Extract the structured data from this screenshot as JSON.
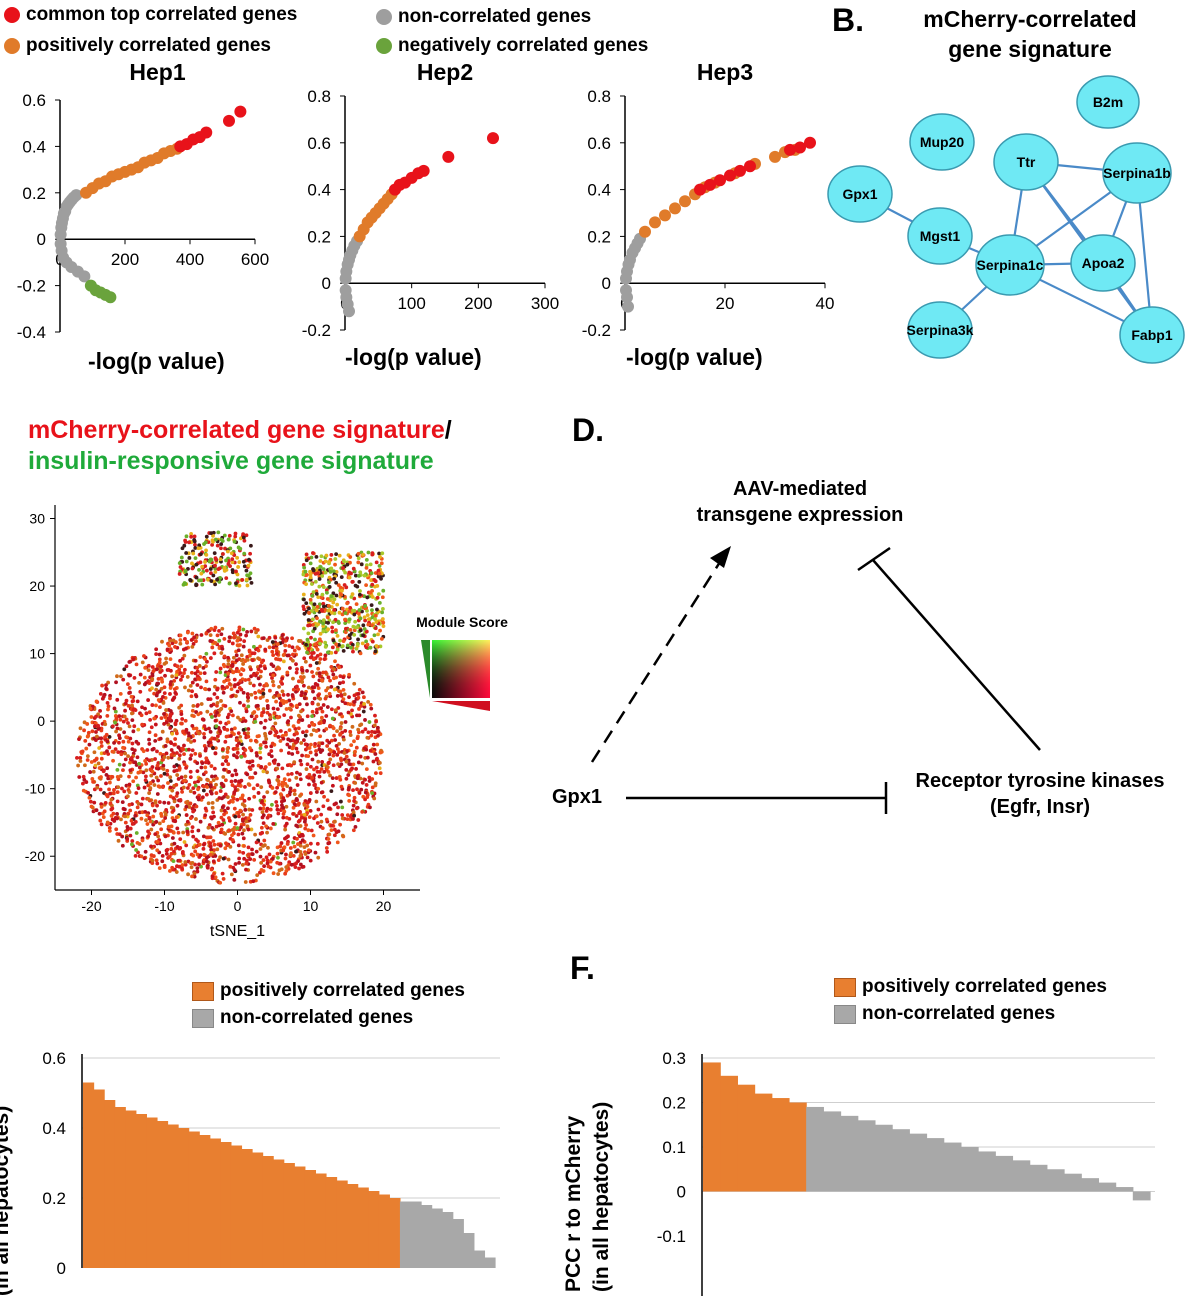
{
  "panelA": {
    "legend": [
      {
        "label": "common top correlated genes",
        "color": "#e8121a"
      },
      {
        "label": "non-correlated genes",
        "color": "#9e9e9e"
      },
      {
        "label": "positively correlated genes",
        "color": "#e07b2a"
      },
      {
        "label": "negatively correlated genes",
        "color": "#6aa33c"
      }
    ],
    "xlabel": "-log(p value)"
  },
  "panelB": {
    "letter": "B.",
    "title_line1": "mCherry-correlated",
    "title_line2": "gene signature",
    "nodes": [
      "B2m",
      "Mup20",
      "Ttr",
      "Serpina1b",
      "Gpx1",
      "Mgst1",
      "Serpina1c",
      "Apoa2",
      "Serpina3k",
      "Fabp1"
    ],
    "edges": [
      [
        "Gpx1",
        "Mgst1"
      ],
      [
        "Ttr",
        "Serpina1b"
      ],
      [
        "Ttr",
        "Serpina1c"
      ],
      [
        "Ttr",
        "Apoa2"
      ],
      [
        "Ttr",
        "Fabp1"
      ],
      [
        "Serpina1b",
        "Serpina1c"
      ],
      [
        "Serpina1b",
        "Apoa2"
      ],
      [
        "Serpina1b",
        "Fabp1"
      ],
      [
        "Serpina1c",
        "Apoa2"
      ],
      [
        "Serpina1c",
        "Fabp1"
      ],
      [
        "Serpina1c",
        "Serpina3k"
      ],
      [
        "Serpina1c",
        "Mgst1"
      ],
      [
        "Apoa2",
        "Fabp1"
      ]
    ],
    "node_color": "#6fe9f4"
  },
  "panelC": {
    "title_red": "mCherry-correlated gene signature",
    "title_sep": "/",
    "title_green": "insulin-responsive gene signature",
    "xlabel": "tSNE_1",
    "legend_title": "Module Score"
  },
  "panelD": {
    "letter": "D.",
    "top_line1": "AAV-mediated",
    "top_line2": "transgene expression",
    "left": "Gpx1",
    "right_line1": "Receptor tyrosine kinases",
    "right_line2": "(Egfr, Insr)"
  },
  "panelE": {
    "legend": [
      {
        "label": "positively correlated genes",
        "color": "#e87f30"
      },
      {
        "label": "non-correlated genes",
        "color": "#a8a8a8"
      }
    ],
    "ylabel_visible": "(in all hepatocytes)"
  },
  "panelF": {
    "letter": "F.",
    "legend": [
      {
        "label": "positively correlated genes",
        "color": "#e87f30"
      },
      {
        "label": "non-correlated genes",
        "color": "#a8a8a8"
      }
    ],
    "ylabel_line1": "PCC r to mCherry",
    "ylabel_line2": "(in all hepatocytes)"
  },
  "chart_data": [
    {
      "type": "scatter",
      "title": "Hep1",
      "xlabel": "-log(p value)",
      "xlim": [
        0,
        600
      ],
      "ylim": [
        -0.4,
        0.6
      ],
      "xticks": [
        0,
        200,
        400,
        600
      ],
      "yticks": [
        -0.4,
        -0.2,
        0,
        0.2,
        0.4,
        0.6
      ],
      "series": [
        {
          "name": "non-correlated genes",
          "color": "#9e9e9e",
          "points": [
            [
              2,
              0.02
            ],
            [
              4,
              0.05
            ],
            [
              6,
              0.07
            ],
            [
              9,
              0.09
            ],
            [
              12,
              0.11
            ],
            [
              16,
              0.12
            ],
            [
              20,
              0.14
            ],
            [
              25,
              0.15
            ],
            [
              30,
              0.16
            ],
            [
              36,
              0.17
            ],
            [
              42,
              0.18
            ],
            [
              50,
              0.19
            ],
            [
              2,
              -0.02
            ],
            [
              5,
              -0.05
            ],
            [
              10,
              -0.08
            ],
            [
              20,
              -0.1
            ],
            [
              35,
              -0.12
            ],
            [
              55,
              -0.14
            ],
            [
              75,
              -0.16
            ]
          ]
        },
        {
          "name": "positively correlated genes",
          "color": "#e07b2a",
          "points": [
            [
              80,
              0.2
            ],
            [
              100,
              0.22
            ],
            [
              120,
              0.24
            ],
            [
              140,
              0.25
            ],
            [
              160,
              0.27
            ],
            [
              180,
              0.28
            ],
            [
              200,
              0.29
            ],
            [
              220,
              0.3
            ],
            [
              240,
              0.31
            ],
            [
              260,
              0.33
            ],
            [
              280,
              0.34
            ],
            [
              300,
              0.35
            ],
            [
              320,
              0.37
            ],
            [
              340,
              0.38
            ],
            [
              360,
              0.39
            ]
          ]
        },
        {
          "name": "negatively correlated genes",
          "color": "#6aa33c",
          "points": [
            [
              95,
              -0.2
            ],
            [
              110,
              -0.22
            ],
            [
              125,
              -0.23
            ],
            [
              140,
              -0.24
            ],
            [
              155,
              -0.25
            ]
          ]
        },
        {
          "name": "common top correlated genes",
          "color": "#e8121a",
          "points": [
            [
              370,
              0.4
            ],
            [
              390,
              0.41
            ],
            [
              410,
              0.43
            ],
            [
              430,
              0.44
            ],
            [
              450,
              0.46
            ],
            [
              520,
              0.51
            ],
            [
              555,
              0.55
            ]
          ]
        }
      ]
    },
    {
      "type": "scatter",
      "title": "Hep2",
      "xlabel": "-log(p value)",
      "xlim": [
        0,
        300
      ],
      "ylim": [
        -0.2,
        0.8
      ],
      "xticks": [
        0,
        100,
        200,
        300
      ],
      "yticks": [
        -0.2,
        0,
        0.2,
        0.4,
        0.6,
        0.8
      ],
      "series": [
        {
          "name": "non-correlated genes",
          "color": "#9e9e9e",
          "points": [
            [
              1,
              0.02
            ],
            [
              2,
              0.05
            ],
            [
              4,
              0.08
            ],
            [
              6,
              0.1
            ],
            [
              8,
              0.12
            ],
            [
              11,
              0.14
            ],
            [
              14,
              0.16
            ],
            [
              18,
              0.18
            ],
            [
              1,
              -0.03
            ],
            [
              2,
              -0.06
            ],
            [
              4,
              -0.09
            ],
            [
              6,
              -0.12
            ]
          ]
        },
        {
          "name": "positively correlated genes",
          "color": "#e07b2a",
          "points": [
            [
              22,
              0.2
            ],
            [
              28,
              0.23
            ],
            [
              34,
              0.26
            ],
            [
              40,
              0.28
            ],
            [
              46,
              0.3
            ],
            [
              52,
              0.32
            ],
            [
              58,
              0.34
            ],
            [
              64,
              0.36
            ],
            [
              70,
              0.38
            ]
          ]
        },
        {
          "name": "common top correlated genes",
          "color": "#e8121a",
          "points": [
            [
              75,
              0.4
            ],
            [
              82,
              0.42
            ],
            [
              90,
              0.43
            ],
            [
              100,
              0.45
            ],
            [
              110,
              0.47
            ],
            [
              118,
              0.48
            ],
            [
              155,
              0.54
            ],
            [
              222,
              0.62
            ]
          ]
        }
      ]
    },
    {
      "type": "scatter",
      "title": "Hep3",
      "xlabel": "-log(p value)",
      "xlim": [
        0,
        40
      ],
      "ylim": [
        -0.2,
        0.8
      ],
      "xticks": [
        0,
        20,
        40
      ],
      "yticks": [
        -0.2,
        0,
        0.2,
        0.4,
        0.6,
        0.8
      ],
      "series": [
        {
          "name": "non-correlated genes",
          "color": "#9e9e9e",
          "points": [
            [
              0.2,
              0.02
            ],
            [
              0.4,
              0.05
            ],
            [
              0.7,
              0.08
            ],
            [
              1,
              0.1
            ],
            [
              1.5,
              0.13
            ],
            [
              2,
              0.15
            ],
            [
              2.5,
              0.17
            ],
            [
              3,
              0.19
            ],
            [
              0.2,
              -0.03
            ],
            [
              0.4,
              -0.06
            ],
            [
              0.6,
              -0.1
            ]
          ]
        },
        {
          "name": "positively correlated genes",
          "color": "#e07b2a",
          "points": [
            [
              4,
              0.22
            ],
            [
              6,
              0.26
            ],
            [
              8,
              0.29
            ],
            [
              10,
              0.32
            ],
            [
              12,
              0.35
            ],
            [
              14,
              0.38
            ],
            [
              16,
              0.41
            ],
            [
              18,
              0.43
            ],
            [
              22,
              0.47
            ],
            [
              26,
              0.51
            ],
            [
              30,
              0.54
            ],
            [
              32,
              0.56
            ],
            [
              34,
              0.57
            ]
          ]
        },
        {
          "name": "common top correlated genes",
          "color": "#e8121a",
          "points": [
            [
              15,
              0.4
            ],
            [
              17,
              0.42
            ],
            [
              19,
              0.44
            ],
            [
              21,
              0.46
            ],
            [
              23,
              0.48
            ],
            [
              25,
              0.5
            ],
            [
              33,
              0.57
            ],
            [
              35,
              0.58
            ],
            [
              37,
              0.6
            ]
          ]
        }
      ]
    },
    {
      "type": "scatter",
      "xlabel": "tSNE_1",
      "xlim": [
        -25,
        25
      ],
      "ylim": [
        -25,
        32
      ],
      "xticks": [
        -20,
        -10,
        0,
        10,
        20
      ],
      "yticks": [
        -20,
        -10,
        0,
        10,
        20,
        30
      ],
      "legend": "Module Score"
    },
    {
      "type": "bar",
      "yticks": [
        0,
        0.2,
        0.4,
        0.6
      ],
      "ylim": [
        0,
        0.6
      ],
      "series": [
        {
          "name": "positively correlated genes",
          "color": "#e87f30",
          "values": [
            0.53,
            0.51,
            0.48,
            0.46,
            0.45,
            0.44,
            0.43,
            0.42,
            0.41,
            0.4,
            0.39,
            0.38,
            0.37,
            0.36,
            0.35,
            0.34,
            0.33,
            0.32,
            0.31,
            0.3,
            0.29,
            0.28,
            0.27,
            0.26,
            0.25,
            0.24,
            0.23,
            0.22,
            0.21,
            0.2
          ]
        },
        {
          "name": "non-correlated genes",
          "color": "#a8a8a8",
          "values": [
            0.19,
            0.19,
            0.18,
            0.17,
            0.16,
            0.14,
            0.1,
            0.05,
            0.03
          ]
        }
      ]
    },
    {
      "type": "bar",
      "ylabel": "PCC r to mCherry (in all hepatocytes)",
      "yticks": [
        -0.1,
        0,
        0.1,
        0.2,
        0.3
      ],
      "ylim": [
        -0.1,
        0.3
      ],
      "series": [
        {
          "name": "positively correlated genes",
          "color": "#e87f30",
          "values": [
            0.29,
            0.26,
            0.24,
            0.22,
            0.21,
            0.2
          ]
        },
        {
          "name": "non-correlated genes",
          "color": "#a8a8a8",
          "values": [
            0.19,
            0.18,
            0.17,
            0.16,
            0.15,
            0.14,
            0.13,
            0.12,
            0.11,
            0.1,
            0.09,
            0.08,
            0.07,
            0.06,
            0.05,
            0.04,
            0.03,
            0.02,
            0.01,
            -0.02
          ]
        }
      ]
    }
  ]
}
